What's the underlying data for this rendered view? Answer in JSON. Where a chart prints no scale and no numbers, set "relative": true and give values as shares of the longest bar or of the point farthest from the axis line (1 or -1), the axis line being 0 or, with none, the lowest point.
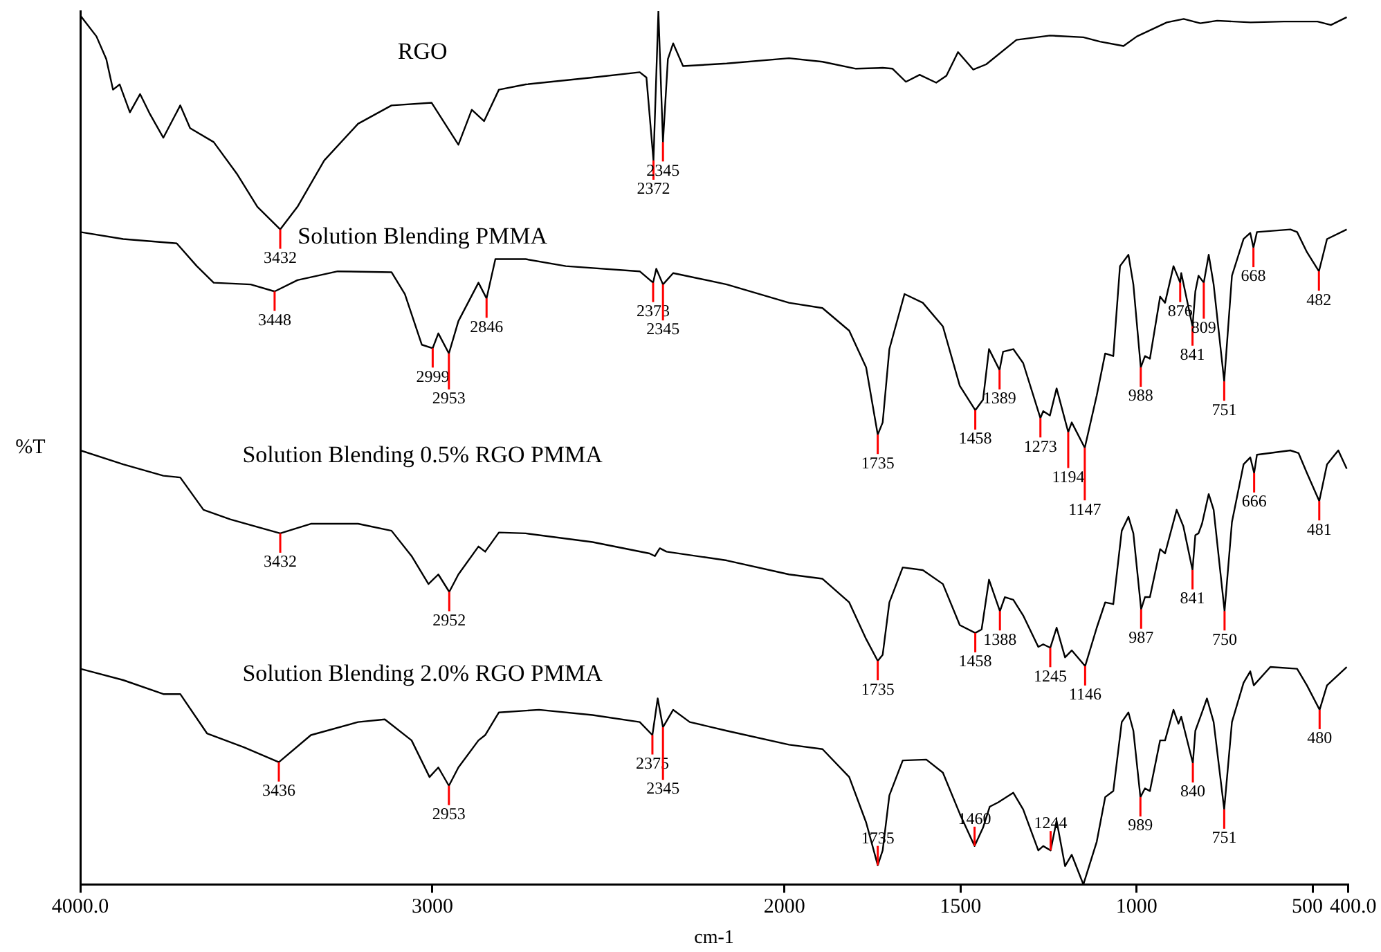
{
  "chart_data": {
    "type": "line",
    "relative": true,
    "xlabel": "cm-1",
    "ylabel": "%T",
    "xlim": [
      4000,
      400
    ],
    "xticks": [
      {
        "value": 4000,
        "label": "4000.0"
      },
      3000,
      2000,
      1500,
      1000,
      500,
      {
        "value": 400,
        "label": "400.0"
      }
    ],
    "series": [
      {
        "name": "RGO",
        "color": "#000000",
        "x": [
          4000,
          3954,
          3926,
          3907,
          3888,
          3859,
          3830,
          3802,
          3764,
          3716,
          3688,
          3621,
          3554,
          3497,
          3432,
          3383,
          3307,
          3211,
          3116,
          3002,
          2926,
          2888,
          2853,
          2811,
          2735,
          2545,
          2411,
          2392,
          2372,
          2358,
          2345,
          2331,
          2316,
          2288,
          2164,
          1987,
          1892,
          1797,
          1721,
          1693,
          1655,
          1616,
          1569,
          1540,
          1507,
          1464,
          1427,
          1341,
          1246,
          1151,
          1104,
          1037,
          999,
          914,
          866,
          819,
          771,
          676,
          581,
          486,
          448,
          403
        ],
        "values": [
          0.995,
          0.971,
          0.945,
          0.91,
          0.916,
          0.884,
          0.905,
          0.882,
          0.855,
          0.892,
          0.866,
          0.85,
          0.813,
          0.776,
          0.75,
          0.776,
          0.829,
          0.871,
          0.892,
          0.895,
          0.847,
          0.887,
          0.874,
          0.91,
          0.916,
          0.924,
          0.93,
          0.924,
          0.829,
          1.0,
          0.85,
          0.945,
          0.963,
          0.937,
          0.94,
          0.946,
          0.942,
          0.934,
          0.935,
          0.934,
          0.919,
          0.927,
          0.918,
          0.926,
          0.953,
          0.933,
          0.939,
          0.967,
          0.972,
          0.97,
          0.965,
          0.96,
          0.971,
          0.987,
          0.991,
          0.986,
          0.989,
          0.987,
          0.988,
          0.988,
          0.984,
          0.993
        ]
      },
      {
        "name": "Solution Blending PMMA",
        "color": "#000000",
        "x": [
          4000,
          3878,
          3726,
          3669,
          3621,
          3516,
          3448,
          3383,
          3269,
          3116,
          3078,
          3030,
          2999,
          2983,
          2953,
          2926,
          2869,
          2846,
          2821,
          2735,
          2621,
          2411,
          2373,
          2364,
          2345,
          2316,
          2164,
          1987,
          1892,
          1816,
          1768,
          1735,
          1721,
          1702,
          1659,
          1607,
          1550,
          1502,
          1458,
          1436,
          1419,
          1389,
          1379,
          1350,
          1322,
          1273,
          1265,
          1246,
          1227,
          1194,
          1184,
          1147,
          1113,
          1089,
          1066,
          1047,
          1023,
          1009,
          988,
          976,
          962,
          933,
          919,
          895,
          876,
          873,
          841,
          833,
          824,
          809,
          795,
          781,
          751,
          729,
          696,
          677,
          668,
          658,
          563,
          544,
          516,
          482,
          459,
          403
        ],
        "values": [
          0.747,
          0.739,
          0.734,
          0.708,
          0.689,
          0.687,
          0.679,
          0.692,
          0.702,
          0.701,
          0.676,
          0.618,
          0.614,
          0.631,
          0.608,
          0.645,
          0.689,
          0.671,
          0.716,
          0.716,
          0.708,
          0.702,
          0.689,
          0.705,
          0.687,
          0.7,
          0.687,
          0.666,
          0.66,
          0.634,
          0.592,
          0.515,
          0.529,
          0.613,
          0.676,
          0.666,
          0.639,
          0.571,
          0.543,
          0.555,
          0.613,
          0.589,
          0.61,
          0.613,
          0.597,
          0.534,
          0.542,
          0.537,
          0.568,
          0.518,
          0.529,
          0.5,
          0.56,
          0.608,
          0.605,
          0.708,
          0.721,
          0.687,
          0.592,
          0.605,
          0.602,
          0.673,
          0.666,
          0.708,
          0.689,
          0.7,
          0.639,
          0.679,
          0.697,
          0.689,
          0.721,
          0.687,
          0.576,
          0.697,
          0.739,
          0.746,
          0.729,
          0.747,
          0.75,
          0.747,
          0.724,
          0.702,
          0.739,
          0.75
        ]
      },
      {
        "name": "Solution Blending 0.5% RGO PMMA",
        "color": "#000000",
        "x": [
          4000,
          3878,
          3764,
          3716,
          3650,
          3574,
          3432,
          3345,
          3211,
          3116,
          3059,
          3011,
          2983,
          2952,
          2926,
          2869,
          2850,
          2811,
          2735,
          2545,
          2383,
          2368,
          2354,
          2335,
          2164,
          1987,
          1892,
          1816,
          1768,
          1735,
          1721,
          1702,
          1664,
          1607,
          1550,
          1502,
          1458,
          1440,
          1419,
          1388,
          1374,
          1350,
          1322,
          1279,
          1265,
          1245,
          1227,
          1203,
          1184,
          1146,
          1113,
          1089,
          1066,
          1042,
          1023,
          1009,
          987,
          976,
          962,
          933,
          919,
          886,
          867,
          841,
          833,
          824,
          814,
          795,
          781,
          750,
          729,
          696,
          677,
          666,
          658,
          563,
          540,
          516,
          481,
          459,
          427,
          403
        ],
        "values": [
          0.497,
          0.481,
          0.468,
          0.466,
          0.429,
          0.418,
          0.402,
          0.413,
          0.413,
          0.405,
          0.376,
          0.344,
          0.355,
          0.335,
          0.355,
          0.387,
          0.381,
          0.403,
          0.402,
          0.392,
          0.379,
          0.376,
          0.385,
          0.381,
          0.371,
          0.355,
          0.35,
          0.323,
          0.281,
          0.256,
          0.263,
          0.323,
          0.363,
          0.36,
          0.344,
          0.297,
          0.288,
          0.292,
          0.349,
          0.313,
          0.329,
          0.326,
          0.308,
          0.272,
          0.275,
          0.271,
          0.294,
          0.26,
          0.268,
          0.25,
          0.294,
          0.323,
          0.321,
          0.405,
          0.421,
          0.402,
          0.315,
          0.329,
          0.329,
          0.384,
          0.379,
          0.429,
          0.41,
          0.36,
          0.4,
          0.402,
          0.413,
          0.447,
          0.429,
          0.313,
          0.415,
          0.481,
          0.489,
          0.471,
          0.492,
          0.497,
          0.494,
          0.471,
          0.439,
          0.481,
          0.497,
          0.476
        ]
      },
      {
        "name": "Solution Blending 2.0% RGO PMMA",
        "color": "#000000",
        "x": [
          4000,
          3878,
          3764,
          3716,
          3640,
          3535,
          3436,
          3345,
          3211,
          3135,
          3059,
          3008,
          2983,
          2953,
          2926,
          2869,
          2850,
          2811,
          2697,
          2545,
          2411,
          2375,
          2360,
          2345,
          2316,
          2269,
          2164,
          1987,
          1892,
          1816,
          1768,
          1735,
          1721,
          1702,
          1664,
          1597,
          1550,
          1502,
          1460,
          1436,
          1417,
          1393,
          1350,
          1322,
          1279,
          1265,
          1244,
          1227,
          1203,
          1184,
          1151,
          1113,
          1089,
          1066,
          1042,
          1023,
          1009,
          989,
          976,
          962,
          933,
          919,
          895,
          881,
          873,
          840,
          833,
          824,
          814,
          800,
          781,
          751,
          729,
          696,
          677,
          667,
          620,
          544,
          516,
          480,
          459,
          403
        ],
        "values": [
          0.247,
          0.234,
          0.218,
          0.218,
          0.173,
          0.157,
          0.14,
          0.171,
          0.186,
          0.189,
          0.165,
          0.123,
          0.134,
          0.113,
          0.134,
          0.165,
          0.171,
          0.197,
          0.2,
          0.194,
          0.186,
          0.171,
          0.213,
          0.18,
          0.2,
          0.186,
          0.176,
          0.16,
          0.155,
          0.123,
          0.071,
          0.022,
          0.039,
          0.102,
          0.142,
          0.143,
          0.128,
          0.081,
          0.044,
          0.065,
          0.089,
          0.094,
          0.105,
          0.086,
          0.039,
          0.044,
          0.039,
          0.073,
          0.021,
          0.034,
          0,
          0.049,
          0.1,
          0.107,
          0.186,
          0.197,
          0.176,
          0.1,
          0.11,
          0.107,
          0.165,
          0.165,
          0.2,
          0.184,
          0.192,
          0.139,
          0.176,
          0.186,
          0.197,
          0.213,
          0.186,
          0.086,
          0.186,
          0.231,
          0.244,
          0.228,
          0.249,
          0.247,
          0.228,
          0.2,
          0.228,
          0.249
        ]
      }
    ],
    "annotations": [
      {
        "text": "3432",
        "x": 3432,
        "y": 0.75
      },
      {
        "text": "2372",
        "x": 2372,
        "y": 0.829
      },
      {
        "text": "2345",
        "x": 2345,
        "y": 0.85
      },
      {
        "text": "3448",
        "x": 3448,
        "y": 0.679
      },
      {
        "text": "2999",
        "x": 2999,
        "y": 0.614
      },
      {
        "text": "2953",
        "x": 2953,
        "y": 0.608
      },
      {
        "text": "2846",
        "x": 2846,
        "y": 0.671
      },
      {
        "text": "2373",
        "x": 2373,
        "y": 0.689
      },
      {
        "text": "2345",
        "x": 2345,
        "y": 0.687
      },
      {
        "text": "1735",
        "x": 1735,
        "y": 0.515
      },
      {
        "text": "1458",
        "x": 1458,
        "y": 0.543
      },
      {
        "text": "1389",
        "x": 1389,
        "y": 0.589
      },
      {
        "text": "1273",
        "x": 1273,
        "y": 0.534
      },
      {
        "text": "1194",
        "x": 1194,
        "y": 0.518
      },
      {
        "text": "1147",
        "x": 1147,
        "y": 0.5
      },
      {
        "text": "988",
        "x": 988,
        "y": 0.592
      },
      {
        "text": "876",
        "x": 876,
        "y": 0.689
      },
      {
        "text": "841",
        "x": 841,
        "y": 0.639
      },
      {
        "text": "809",
        "x": 809,
        "y": 0.689
      },
      {
        "text": "751",
        "x": 751,
        "y": 0.576
      },
      {
        "text": "668",
        "x": 668,
        "y": 0.729
      },
      {
        "text": "482",
        "x": 482,
        "y": 0.702
      },
      {
        "text": "3432",
        "x": 3432,
        "y": 0.402
      },
      {
        "text": "2952",
        "x": 2952,
        "y": 0.335
      },
      {
        "text": "1735",
        "x": 1735,
        "y": 0.256
      },
      {
        "text": "1458",
        "x": 1458,
        "y": 0.288
      },
      {
        "text": "1388",
        "x": 1388,
        "y": 0.313
      },
      {
        "text": "1245",
        "x": 1245,
        "y": 0.271
      },
      {
        "text": "1146",
        "x": 1146,
        "y": 0.25
      },
      {
        "text": "987",
        "x": 987,
        "y": 0.315
      },
      {
        "text": "841",
        "x": 841,
        "y": 0.36
      },
      {
        "text": "750",
        "x": 750,
        "y": 0.313
      },
      {
        "text": "666",
        "x": 666,
        "y": 0.471
      },
      {
        "text": "481",
        "x": 481,
        "y": 0.439
      },
      {
        "text": "3436",
        "x": 3436,
        "y": 0.14
      },
      {
        "text": "2953",
        "x": 2953,
        "y": 0.113
      },
      {
        "text": "2375",
        "x": 2375,
        "y": 0.171
      },
      {
        "text": "2345",
        "x": 2345,
        "y": 0.18
      },
      {
        "text": "1735",
        "x": 1735,
        "y": 0.022
      },
      {
        "text": "1460",
        "x": 1460,
        "y": 0.044
      },
      {
        "text": "1244",
        "x": 1244,
        "y": 0.039
      },
      {
        "text": "989",
        "x": 989,
        "y": 0.1
      },
      {
        "text": "840",
        "x": 840,
        "y": 0.139
      },
      {
        "text": "751",
        "x": 751,
        "y": 0.086
      },
      {
        "text": "480",
        "x": 480,
        "y": 0.2
      }
    ]
  }
}
